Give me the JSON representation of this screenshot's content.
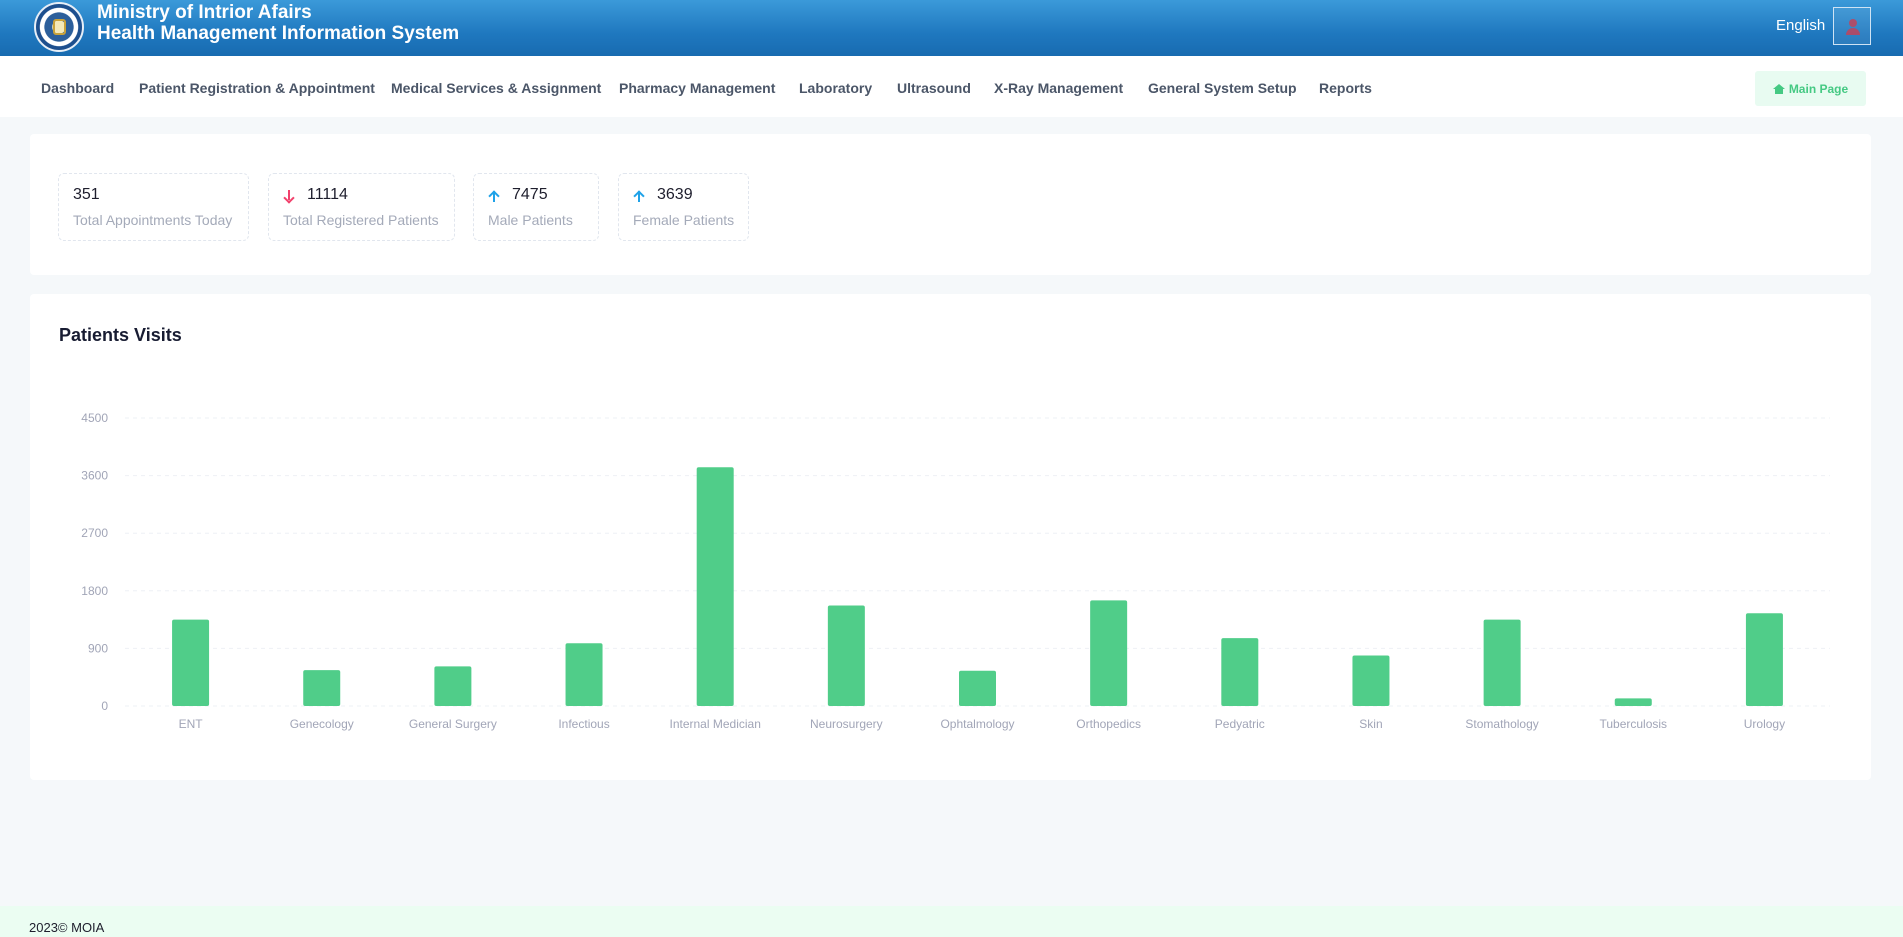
{
  "header": {
    "org_title": "Ministry of Intrior Afairs",
    "system_title": "Health Management Information System",
    "language": "English",
    "logo_icon": "moia-emblem-logo",
    "user_icon": "user-icon"
  },
  "nav": {
    "items": [
      "Dashboard",
      "Patient Registration & Appointment",
      "Medical Services & Assignment",
      "Pharmacy Management",
      "Laboratory",
      "Ultrasound",
      "X-Ray Management",
      "General System Setup",
      "Reports"
    ],
    "main_page_label": "Main Page",
    "main_page_icon": "home-icon"
  },
  "stats": [
    {
      "value": "351",
      "label": "Total Appointments Today",
      "trend": "none"
    },
    {
      "value": "11114",
      "label": "Total Registered Patients",
      "trend": "down"
    },
    {
      "value": "7475",
      "label": "Male Patients",
      "trend": "up"
    },
    {
      "value": "3639",
      "label": "Female Patients",
      "trend": "up"
    }
  ],
  "chart_title": "Patients Visits",
  "chart_data": {
    "type": "bar",
    "title": "Patients Visits",
    "categories": [
      "ENT",
      "Genecology",
      "General Surgery",
      "Infectious",
      "Internal Medician",
      "Neurosurgery",
      "Ophtalmology",
      "Orthopedics",
      "Pedyatric",
      "Skin",
      "Stomathology",
      "Tuberculosis",
      "Urology"
    ],
    "values": [
      1350,
      560,
      620,
      980,
      3730,
      1570,
      550,
      1650,
      1060,
      790,
      1350,
      120,
      1450
    ],
    "yticks": [
      "0",
      "900",
      "1800",
      "2700",
      "3600",
      "4500"
    ],
    "ylim": [
      0,
      4500
    ],
    "grid": true,
    "bar_color": "#50cd89",
    "xlabel": "",
    "ylabel": ""
  },
  "footer": {
    "text": "2023©  MOIA"
  }
}
